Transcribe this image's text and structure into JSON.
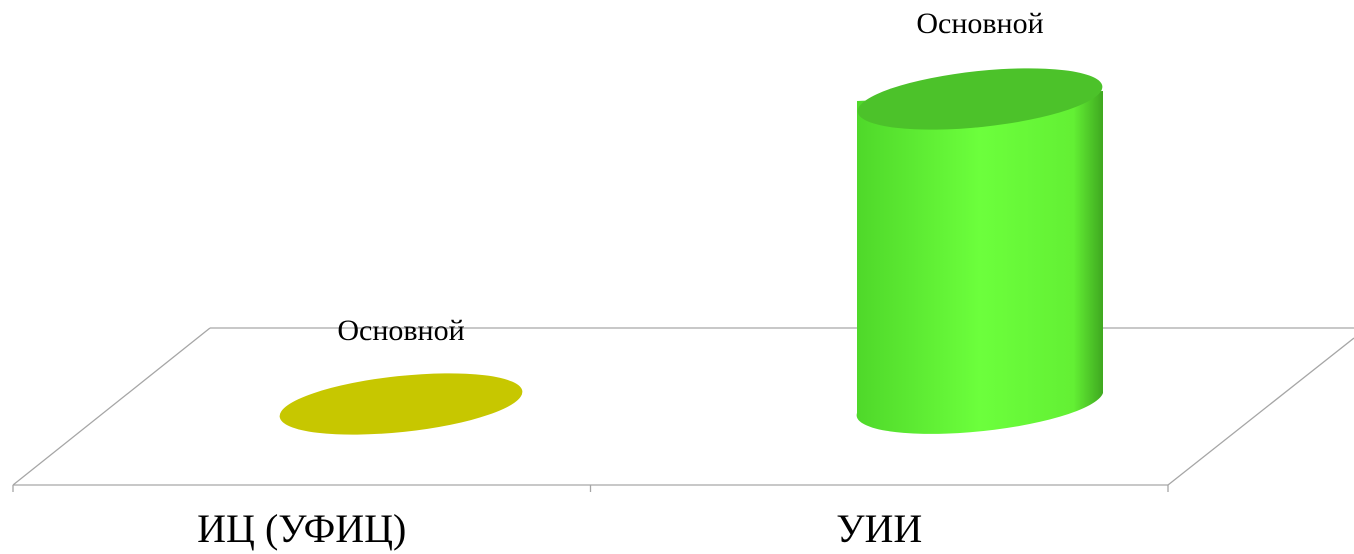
{
  "chart_data": {
    "type": "bar",
    "style": "3d-cylinder",
    "categories": [
      "ИЦ (УФИЦ)",
      "УИИ"
    ],
    "series": [
      {
        "name": "Основной",
        "values": [
          0,
          1
        ],
        "colors": [
          "#c7c700",
          "#6cff3c"
        ],
        "top_colors": [
          "#c7c700",
          "#4cc22a"
        ],
        "data_labels": [
          "Основной",
          "Основной"
        ]
      }
    ],
    "xlabel": "",
    "ylabel": "",
    "ylim": [
      0,
      1
    ],
    "grid": false,
    "legend": "none",
    "floor_line_color": "#a6a6a6"
  }
}
